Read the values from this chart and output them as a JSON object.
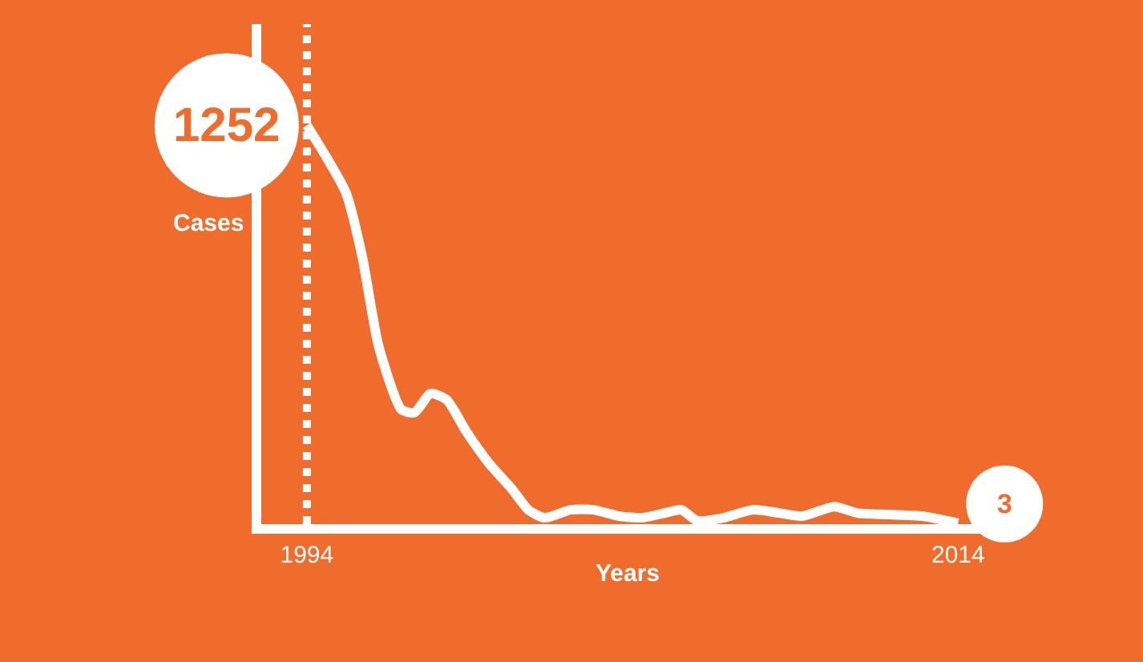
{
  "chart_data": {
    "type": "line",
    "xlabel": "Years",
    "ylabel": "Cases",
    "x": [
      1994,
      1995.2,
      1995.7,
      1996.2,
      1996.9,
      1997.3,
      1997.8,
      1998.3,
      1998.9,
      1999.6,
      2000.3,
      2000.8,
      2001.3,
      2002.1,
      2002.8,
      2003.6,
      2004.3,
      2005.0,
      2005.5,
      2006.0,
      2006.8,
      2007.7,
      2008.5,
      2009.2,
      2010.2,
      2010.9,
      2011.9,
      2012.9,
      2014
    ],
    "series": [
      {
        "color": "#ffffff",
        "values": [
          1252,
          1040,
          840,
          560,
          360,
          350,
          410,
          390,
          290,
          190,
          110,
          45,
          20,
          45,
          45,
          25,
          20,
          35,
          45,
          10,
          20,
          45,
          35,
          25,
          55,
          35,
          30,
          25,
          3
        ],
        "value_labels": [
          "1252",
          null,
          null,
          null,
          null,
          null,
          null,
          null,
          null,
          null,
          null,
          null,
          null,
          null,
          null,
          null,
          null,
          null,
          null,
          null,
          null,
          null,
          null,
          null,
          null,
          null,
          null,
          null,
          "3"
        ]
      }
    ],
    "xlim": [
      1992.6,
      2015.1
    ],
    "xticks": [
      1994,
      2014
    ],
    "ylim": [
      0,
      1570
    ],
    "tick_labels": "x",
    "grid": false,
    "marker": "none",
    "line_style": "solid",
    "ref_lines": [
      {
        "axis": "x",
        "value": 1994,
        "color": "#ffffff",
        "line_style": "dotted"
      }
    ]
  }
}
